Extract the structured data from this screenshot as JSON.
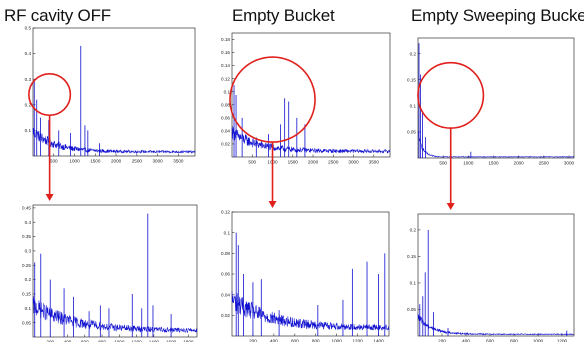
{
  "columns": [
    {
      "title": "RF cavity OFF"
    },
    {
      "title": "Empty Bucket"
    },
    {
      "title": "Empty Sweeping Bucket"
    }
  ],
  "colors": {
    "trace": "#1010d0",
    "highlight": "#e0201c",
    "axis": "#333333",
    "background": "#ffffff"
  },
  "chart_data": [
    {
      "id": "rf-off-full",
      "type": "line",
      "xlim": [
        0,
        3900
      ],
      "ylim": [
        0,
        0.5
      ],
      "xticks": [
        500,
        1000,
        1500,
        2000,
        2500,
        3000,
        3500
      ],
      "yticks": [
        0.1,
        0.2,
        0.3,
        0.4,
        0.5
      ],
      "xticklabels": [
        "500",
        "1000",
        "1500",
        "2000",
        "2500",
        "3000",
        "3500"
      ],
      "yticklabels": [
        "0.1",
        "0.2",
        "0.3",
        "0.4",
        "0.5"
      ],
      "base": {
        "mode": "decay",
        "start": 0.09,
        "floor": 0.015,
        "tau": 500,
        "noise": 0.045
      },
      "peaks": [
        [
          30,
          0.3
        ],
        [
          90,
          0.22
        ],
        [
          180,
          0.15
        ],
        [
          380,
          0.14
        ],
        [
          620,
          0.1
        ],
        [
          900,
          0.09
        ],
        [
          1150,
          0.43
        ],
        [
          1250,
          0.12
        ],
        [
          1320,
          0.1
        ],
        [
          1600,
          0.05
        ]
      ],
      "highlight": {
        "kind": "circle",
        "cx": 400,
        "cy": 0.24,
        "r": 500
      }
    },
    {
      "id": "empty-bucket-full",
      "type": "line",
      "xlim": [
        0,
        3900
      ],
      "ylim": [
        0,
        0.19
      ],
      "xticks": [
        500,
        1000,
        1500,
        2000,
        2500,
        3000,
        3500
      ],
      "yticks": [
        0.02,
        0.04,
        0.06,
        0.08,
        0.1,
        0.12,
        0.14,
        0.16,
        0.18
      ],
      "xticklabels": [
        "500",
        "1000",
        "1500",
        "2000",
        "2500",
        "3000",
        "3500"
      ],
      "yticklabels": [
        "0.02",
        "0.04",
        "0.06",
        "0.08",
        "0.1",
        "0.12",
        "0.14",
        "0.16",
        "0.18"
      ],
      "base": {
        "mode": "decay",
        "start": 0.035,
        "floor": 0.008,
        "tau": 600,
        "noise": 0.018
      },
      "peaks": [
        [
          50,
          0.11
        ],
        [
          100,
          0.095
        ],
        [
          250,
          0.06
        ],
        [
          600,
          0.03
        ],
        [
          900,
          0.035
        ],
        [
          1200,
          0.05
        ],
        [
          1300,
          0.09
        ],
        [
          1400,
          0.085
        ],
        [
          1600,
          0.06
        ],
        [
          1800,
          0.05
        ]
      ],
      "highlight": {
        "kind": "circle",
        "cx": 1000,
        "cy": 0.088,
        "r": 1050
      }
    },
    {
      "id": "sweeping-bucket-full",
      "type": "line",
      "xlim": [
        0,
        3100
      ],
      "ylim": [
        0,
        0.23
      ],
      "xticks": [
        500,
        1000,
        1500,
        2000,
        2500,
        3000
      ],
      "yticks": [
        0.05,
        0.1,
        0.15,
        0.2
      ],
      "xticklabels": [
        "500",
        "1000",
        "1500",
        "2000",
        "2500",
        "3000"
      ],
      "yticklabels": [
        "0.05",
        "0.1",
        "0.15",
        "0.2"
      ],
      "base": {
        "mode": "decay",
        "start": 0.045,
        "floor": 0.002,
        "tau": 90,
        "noise": 0.012
      },
      "peaks": [
        [
          20,
          0.22
        ],
        [
          50,
          0.16
        ],
        [
          90,
          0.09
        ],
        [
          150,
          0.04
        ],
        [
          1050,
          0.012
        ]
      ],
      "highlight": {
        "kind": "circle",
        "cx": 650,
        "cy": 0.12,
        "r": 650
      }
    },
    {
      "id": "rf-off-zoom",
      "type": "line",
      "xlim": [
        0,
        1900
      ],
      "ylim": [
        0,
        0.46
      ],
      "xticks": [
        200,
        400,
        600,
        800,
        1000,
        1200,
        1400,
        1600,
        1800
      ],
      "yticks": [
        0.05,
        0.1,
        0.15,
        0.2,
        0.25,
        0.3,
        0.35,
        0.4,
        0.45
      ],
      "xticklabels": [
        "200",
        "400",
        "600",
        "800",
        "1000",
        "1200",
        "1400",
        "1600",
        "1800"
      ],
      "yticklabels": [
        "0.05",
        "0.1",
        "0.15",
        "0.2",
        "0.25",
        "0.3",
        "0.35",
        "0.4",
        "0.45"
      ],
      "base": {
        "mode": "decay",
        "start": 0.1,
        "floor": 0.02,
        "tau": 450,
        "noise": 0.055
      },
      "peaks": [
        [
          20,
          0.26
        ],
        [
          90,
          0.29
        ],
        [
          200,
          0.2
        ],
        [
          360,
          0.17
        ],
        [
          470,
          0.14
        ],
        [
          650,
          0.09
        ],
        [
          780,
          0.11
        ],
        [
          880,
          0.1
        ],
        [
          1150,
          0.15
        ],
        [
          1260,
          0.1
        ],
        [
          1330,
          0.43
        ],
        [
          1390,
          0.11
        ],
        [
          1600,
          0.08
        ]
      ],
      "highlight": null
    },
    {
      "id": "empty-bucket-zoom",
      "type": "line",
      "xlim": [
        0,
        1500
      ],
      "ylim": [
        0,
        0.12
      ],
      "xticks": [
        200,
        400,
        600,
        800,
        1000,
        1200,
        1400
      ],
      "yticks": [
        0.02,
        0.04,
        0.06,
        0.08,
        0.1,
        0.12
      ],
      "xticklabels": [
        "200",
        "400",
        "600",
        "800",
        "1000",
        "1200",
        "1400"
      ],
      "yticklabels": [
        "0.02",
        "0.04",
        "0.06",
        "0.08",
        "0.1",
        "0.12"
      ],
      "base": {
        "mode": "decay",
        "start": 0.032,
        "floor": 0.007,
        "tau": 350,
        "noise": 0.018
      },
      "peaks": [
        [
          40,
          0.1
        ],
        [
          60,
          0.088
        ],
        [
          110,
          0.06
        ],
        [
          200,
          0.052
        ],
        [
          280,
          0.055
        ],
        [
          450,
          0.025
        ],
        [
          820,
          0.03
        ],
        [
          1060,
          0.035
        ],
        [
          1150,
          0.065
        ],
        [
          1290,
          0.072
        ],
        [
          1400,
          0.06
        ],
        [
          1460,
          0.08
        ]
      ],
      "highlight": null
    },
    {
      "id": "sweeping-bucket-zoom",
      "type": "line",
      "xlim": [
        0,
        1300
      ],
      "ylim": [
        0,
        0.23
      ],
      "xticks": [
        200,
        400,
        600,
        800,
        1000,
        1200
      ],
      "yticks": [
        0.05,
        0.1,
        0.15,
        0.2
      ],
      "xticklabels": [
        "200",
        "400",
        "600",
        "800",
        "1000",
        "1200"
      ],
      "yticklabels": [
        "0.05",
        "0.1",
        "0.15",
        "0.2"
      ],
      "base": {
        "mode": "decay",
        "start": 0.035,
        "floor": 0.003,
        "tau": 110,
        "noise": 0.012
      },
      "peaks": [
        [
          15,
          0.06
        ],
        [
          40,
          0.075
        ],
        [
          60,
          0.12
        ],
        [
          85,
          0.2
        ],
        [
          130,
          0.045
        ],
        [
          250,
          0.015
        ],
        [
          1240,
          0.01
        ]
      ],
      "highlight": null
    }
  ]
}
